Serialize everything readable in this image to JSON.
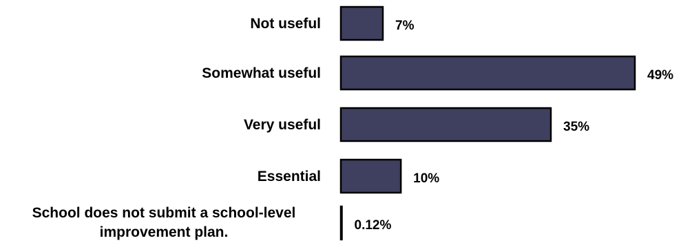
{
  "chart_data": {
    "type": "bar",
    "orientation": "horizontal",
    "categories": [
      "Not useful",
      "Somewhat useful",
      "Very useful",
      "Essential",
      "School does not submit a school-level improvement plan."
    ],
    "values": [
      7,
      49,
      35,
      10,
      0.12
    ],
    "value_labels": [
      "7%",
      "49%",
      "35%",
      "10%",
      "0.12%"
    ],
    "title": "",
    "xlabel": "",
    "ylabel": "",
    "xlim": [
      0,
      49
    ],
    "grid": false,
    "legend": "none",
    "bar_color": "#3f3f5f",
    "bar_edge_color": "#000000"
  }
}
